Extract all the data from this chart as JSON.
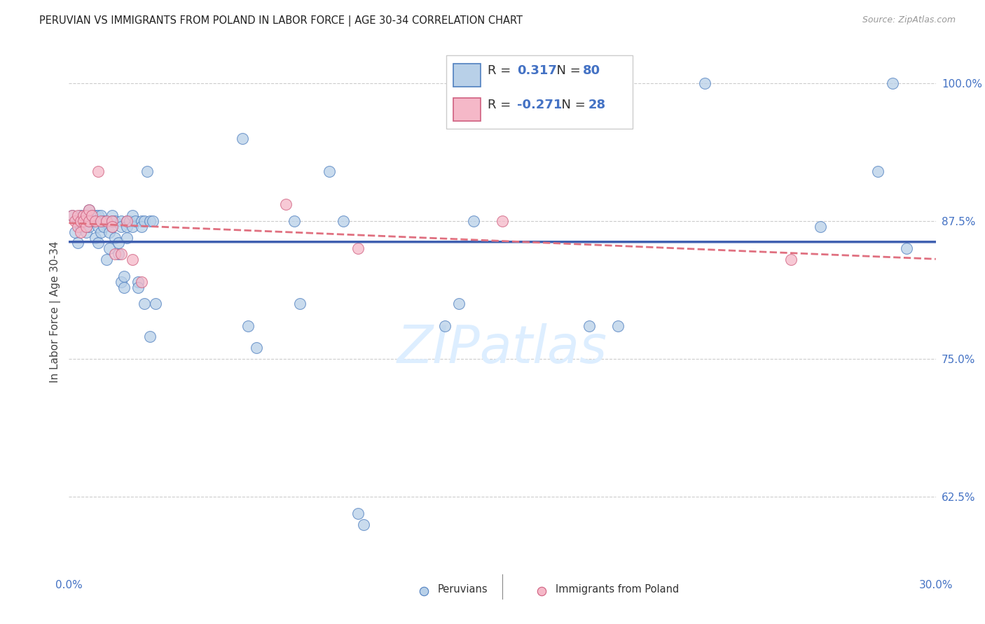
{
  "title": "PERUVIAN VS IMMIGRANTS FROM POLAND IN LABOR FORCE | AGE 30-34 CORRELATION CHART",
  "source": "Source: ZipAtlas.com",
  "ylabel": "In Labor Force | Age 30-34",
  "legend_blue_label": "Peruvians",
  "legend_pink_label": "Immigrants from Poland",
  "xlim": [
    0.0,
    0.3
  ],
  "ylim": [
    0.555,
    1.03
  ],
  "ytick_positions": [
    0.625,
    0.75,
    0.875,
    1.0
  ],
  "ytick_labels": [
    "62.5%",
    "75.0%",
    "87.5%",
    "100.0%"
  ],
  "xtick_positions": [
    0.0,
    0.05,
    0.1,
    0.15,
    0.2,
    0.25,
    0.3
  ],
  "xtick_labels": [
    "0.0%",
    "",
    "",
    "",
    "",
    "",
    "30.0%"
  ],
  "R_blue": "0.317",
  "N_blue": "80",
  "R_pink": "-0.271",
  "N_pink": "28",
  "blue_fill": "#b8d0e8",
  "pink_fill": "#f5b8c8",
  "blue_edge": "#5080c0",
  "pink_edge": "#d06080",
  "line_blue_color": "#4060b0",
  "line_pink_color": "#e07080",
  "axis_color": "#4472c4",
  "grid_color": "#cccccc",
  "watermark": "ZIPatlas",
  "watermark_color": "#ddeeff",
  "background_color": "#ffffff",
  "blue_x": [
    0.001,
    0.002,
    0.003,
    0.003,
    0.004,
    0.004,
    0.005,
    0.005,
    0.005,
    0.006,
    0.006,
    0.006,
    0.007,
    0.007,
    0.007,
    0.008,
    0.008,
    0.009,
    0.009,
    0.009,
    0.01,
    0.01,
    0.01,
    0.011,
    0.011,
    0.012,
    0.012,
    0.013,
    0.013,
    0.014,
    0.014,
    0.015,
    0.015,
    0.015,
    0.016,
    0.016,
    0.017,
    0.017,
    0.018,
    0.018,
    0.018,
    0.019,
    0.019,
    0.02,
    0.02,
    0.02,
    0.021,
    0.022,
    0.022,
    0.023,
    0.024,
    0.024,
    0.025,
    0.025,
    0.026,
    0.026,
    0.027,
    0.028,
    0.028,
    0.029,
    0.03,
    0.06,
    0.062,
    0.065,
    0.078,
    0.08,
    0.09,
    0.095,
    0.1,
    0.102,
    0.13,
    0.135,
    0.14,
    0.18,
    0.19,
    0.22,
    0.26,
    0.28,
    0.285,
    0.29
  ],
  "blue_y": [
    0.88,
    0.865,
    0.875,
    0.855,
    0.88,
    0.87,
    0.87,
    0.875,
    0.88,
    0.88,
    0.875,
    0.865,
    0.875,
    0.87,
    0.885,
    0.88,
    0.875,
    0.875,
    0.88,
    0.86,
    0.88,
    0.855,
    0.87,
    0.88,
    0.865,
    0.875,
    0.87,
    0.84,
    0.875,
    0.865,
    0.85,
    0.88,
    0.875,
    0.87,
    0.875,
    0.86,
    0.855,
    0.845,
    0.875,
    0.82,
    0.87,
    0.825,
    0.815,
    0.875,
    0.87,
    0.86,
    0.875,
    0.87,
    0.88,
    0.875,
    0.82,
    0.815,
    0.875,
    0.87,
    0.875,
    0.8,
    0.92,
    0.875,
    0.77,
    0.875,
    0.8,
    0.95,
    0.78,
    0.76,
    0.875,
    0.8,
    0.92,
    0.875,
    0.61,
    0.6,
    0.78,
    0.8,
    0.875,
    0.78,
    0.78,
    1.0,
    0.87,
    0.92,
    1.0,
    0.85
  ],
  "pink_x": [
    0.001,
    0.002,
    0.003,
    0.003,
    0.004,
    0.004,
    0.005,
    0.005,
    0.006,
    0.006,
    0.007,
    0.007,
    0.008,
    0.009,
    0.01,
    0.011,
    0.013,
    0.015,
    0.015,
    0.016,
    0.018,
    0.02,
    0.022,
    0.025,
    0.075,
    0.1,
    0.15,
    0.25
  ],
  "pink_y": [
    0.88,
    0.875,
    0.88,
    0.87,
    0.875,
    0.865,
    0.88,
    0.875,
    0.88,
    0.87,
    0.875,
    0.885,
    0.88,
    0.875,
    0.92,
    0.875,
    0.875,
    0.875,
    0.87,
    0.845,
    0.845,
    0.875,
    0.84,
    0.82,
    0.89,
    0.85,
    0.875,
    0.84
  ]
}
